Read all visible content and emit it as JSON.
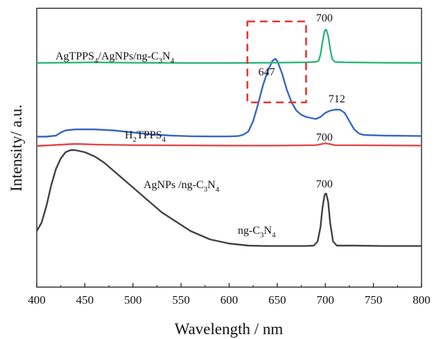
{
  "chart_data": {
    "type": "line",
    "xlabel": "Wavelength / nm",
    "ylabel": "Intensity/ a.u.",
    "xlim": [
      400,
      800
    ],
    "ylim": [
      0,
      100
    ],
    "x_ticks": [
      "400",
      "450",
      "500",
      "550",
      "600",
      "650",
      "700",
      "750",
      "800"
    ],
    "grid": false,
    "series": [
      {
        "name": "ng-C3N4",
        "label": {
          "base": "ng-C",
          "sub1": "3",
          "mid": "N",
          "sub2": "4"
        },
        "color": "#404040",
        "points": [
          [
            400,
            22
          ],
          [
            405,
            26
          ],
          [
            410,
            34
          ],
          [
            415,
            44
          ],
          [
            420,
            52
          ],
          [
            425,
            57
          ],
          [
            430,
            60
          ],
          [
            435,
            61
          ],
          [
            440,
            61
          ],
          [
            445,
            60.5
          ],
          [
            450,
            60
          ],
          [
            460,
            58
          ],
          [
            470,
            55
          ],
          [
            480,
            51
          ],
          [
            490,
            47
          ],
          [
            500,
            43
          ],
          [
            510,
            39
          ],
          [
            520,
            35
          ],
          [
            530,
            31
          ],
          [
            540,
            28
          ],
          [
            550,
            25
          ],
          [
            560,
            22
          ],
          [
            570,
            20
          ],
          [
            580,
            18
          ],
          [
            590,
            17
          ],
          [
            600,
            16
          ],
          [
            620,
            15
          ],
          [
            640,
            14.8
          ],
          [
            660,
            14.8
          ],
          [
            680,
            14.8
          ],
          [
            688,
            15
          ],
          [
            692,
            17
          ],
          [
            695,
            24
          ],
          [
            697,
            33
          ],
          [
            699,
            39
          ],
          [
            700,
            40
          ],
          [
            701,
            40
          ],
          [
            703,
            36
          ],
          [
            705,
            26
          ],
          [
            708,
            17
          ],
          [
            712,
            15
          ],
          [
            730,
            15
          ],
          [
            760,
            14.8
          ],
          [
            800,
            14.8
          ]
        ]
      },
      {
        "name": "AgNPs /ng-C3N4",
        "label": {
          "base": "AgNPs /ng-C",
          "sub1": "3",
          "mid": "N",
          "sub2": "4"
        },
        "color": "#e04848",
        "points": [
          [
            400,
            63
          ],
          [
            420,
            63.5
          ],
          [
            440,
            64
          ],
          [
            460,
            63.7
          ],
          [
            500,
            63.4
          ],
          [
            550,
            63.3
          ],
          [
            600,
            63.2
          ],
          [
            650,
            63.2
          ],
          [
            690,
            63.4
          ],
          [
            695,
            63.8
          ],
          [
            700,
            64.3
          ],
          [
            705,
            63.9
          ],
          [
            710,
            63.4
          ],
          [
            750,
            63.3
          ],
          [
            800,
            63.2
          ]
        ]
      },
      {
        "name": "H2TPPS4",
        "label": {
          "base": "H",
          "sub1": "2",
          "mid": "TPPS",
          "sub2": "4"
        },
        "color": "#3565c4",
        "points": [
          [
            400,
            67.5
          ],
          [
            410,
            67.5
          ],
          [
            420,
            68
          ],
          [
            425,
            69.5
          ],
          [
            430,
            70.5
          ],
          [
            440,
            71
          ],
          [
            450,
            71
          ],
          [
            460,
            71
          ],
          [
            480,
            70.5
          ],
          [
            500,
            69.5
          ],
          [
            520,
            68.5
          ],
          [
            540,
            68
          ],
          [
            560,
            67.7
          ],
          [
            580,
            67.6
          ],
          [
            600,
            67.6
          ],
          [
            610,
            67.8
          ],
          [
            615,
            68.5
          ],
          [
            620,
            70
          ],
          [
            625,
            75
          ],
          [
            630,
            83
          ],
          [
            635,
            92
          ],
          [
            640,
            99
          ],
          [
            645,
            104
          ],
          [
            648,
            105
          ],
          [
            650,
            104
          ],
          [
            655,
            98
          ],
          [
            660,
            90
          ],
          [
            665,
            84
          ],
          [
            670,
            80
          ],
          [
            675,
            78
          ],
          [
            680,
            77
          ],
          [
            685,
            76.5
          ],
          [
            690,
            76
          ],
          [
            695,
            77
          ],
          [
            700,
            79
          ],
          [
            705,
            80
          ],
          [
            710,
            80.5
          ],
          [
            715,
            80.5
          ],
          [
            720,
            79
          ],
          [
            725,
            75
          ],
          [
            730,
            71
          ],
          [
            735,
            69
          ],
          [
            740,
            68.3
          ],
          [
            760,
            68
          ],
          [
            800,
            67.8
          ]
        ]
      },
      {
        "name": "AgTPPS4/AgNPs/ng-C3N4",
        "label": {
          "base": "AgTPPS",
          "sub1": "4",
          "mid": "/AgNPs/ng-C",
          "sub2": "3",
          "tail": "N",
          "sub3": "4"
        },
        "color": "#2eb47a",
        "points": [
          [
            400,
            103
          ],
          [
            420,
            103.1
          ],
          [
            440,
            103.2
          ],
          [
            460,
            103.3
          ],
          [
            480,
            103.2
          ],
          [
            500,
            103.1
          ],
          [
            550,
            103
          ],
          [
            600,
            103
          ],
          [
            640,
            103.1
          ],
          [
            660,
            103.2
          ],
          [
            680,
            103.3
          ],
          [
            690,
            103.5
          ],
          [
            693,
            104
          ],
          [
            695,
            107
          ],
          [
            697,
            113
          ],
          [
            699,
            118
          ],
          [
            700,
            119
          ],
          [
            701,
            119
          ],
          [
            703,
            116
          ],
          [
            705,
            110
          ],
          [
            707,
            105
          ],
          [
            710,
            103.5
          ],
          [
            720,
            103.3
          ],
          [
            760,
            103.1
          ],
          [
            800,
            103
          ]
        ]
      }
    ],
    "annotations": [
      {
        "text": "700",
        "x": 699,
        "y": 123
      },
      {
        "text": "647",
        "x": 639,
        "y": 97
      },
      {
        "text": "712",
        "x": 712,
        "y": 84
      },
      {
        "text": "700",
        "x": 699,
        "y": 65.5
      },
      {
        "text": "700",
        "x": 699,
        "y": 43
      }
    ],
    "highlight_box": {
      "x0": 619,
      "x1": 680,
      "y0": 84,
      "y1": 123,
      "color": "#e8322e",
      "style": "dashed"
    }
  }
}
